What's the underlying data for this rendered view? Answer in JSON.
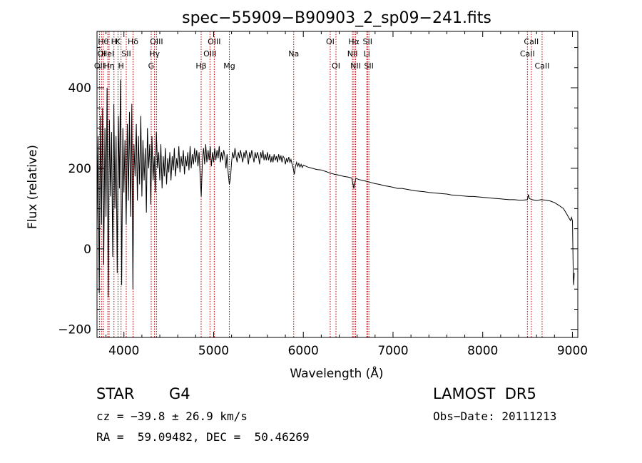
{
  "chart_data": {
    "type": "line",
    "title": "spec−55909−B90903_2_sp09−241.fits",
    "xlabel": "Wavelength (Å)",
    "ylabel": "Flux (relative)",
    "xlim": [
      3700,
      9060
    ],
    "ylim": [
      -220,
      540
    ],
    "xticks": [
      4000,
      5000,
      6000,
      7000,
      8000,
      9000
    ],
    "yticks": [
      -200,
      0,
      200,
      400
    ],
    "grid": false,
    "line_color": "#000000",
    "marker_color": "#c00000",
    "series": [
      {
        "points": [
          [
            3700,
            40
          ],
          [
            3712,
            280
          ],
          [
            3725,
            -110
          ],
          [
            3738,
            330
          ],
          [
            3750,
            60
          ],
          [
            3762,
            350
          ],
          [
            3775,
            -40
          ],
          [
            3788,
            300
          ],
          [
            3800,
            80
          ],
          [
            3812,
            400
          ],
          [
            3825,
            -120
          ],
          [
            3838,
            320
          ],
          [
            3850,
            130
          ],
          [
            3862,
            290
          ],
          [
            3875,
            -20
          ],
          [
            3888,
            360
          ],
          [
            3900,
            100
          ],
          [
            3912,
            280
          ],
          [
            3925,
            -60
          ],
          [
            3938,
            330
          ],
          [
            3950,
            150
          ],
          [
            3962,
            420
          ],
          [
            3975,
            -90
          ],
          [
            3988,
            300
          ],
          [
            4000,
            140
          ],
          [
            4012,
            270
          ],
          [
            4025,
            60
          ],
          [
            4038,
            310
          ],
          [
            4050,
            120
          ],
          [
            4062,
            340
          ],
          [
            4075,
            80
          ],
          [
            4088,
            360
          ],
          [
            4100,
            -100
          ],
          [
            4112,
            260
          ],
          [
            4125,
            180
          ],
          [
            4138,
            310
          ],
          [
            4150,
            120
          ],
          [
            4162,
            280
          ],
          [
            4175,
            160
          ],
          [
            4188,
            330
          ],
          [
            4200,
            130
          ],
          [
            4212,
            270
          ],
          [
            4225,
            170
          ],
          [
            4238,
            250
          ],
          [
            4250,
            90
          ],
          [
            4262,
            300
          ],
          [
            4275,
            200
          ],
          [
            4288,
            260
          ],
          [
            4300,
            110
          ],
          [
            4312,
            280
          ],
          [
            4325,
            170
          ],
          [
            4338,
            230
          ],
          [
            4350,
            140
          ],
          [
            4362,
            290
          ],
          [
            4375,
            200
          ],
          [
            4388,
            240
          ],
          [
            4400,
            170
          ],
          [
            4412,
            260
          ],
          [
            4425,
            150
          ],
          [
            4438,
            230
          ],
          [
            4450,
            180
          ],
          [
            4462,
            250
          ],
          [
            4475,
            160
          ],
          [
            4488,
            225
          ],
          [
            4500,
            190
          ],
          [
            4512,
            240
          ],
          [
            4525,
            170
          ],
          [
            4538,
            230
          ],
          [
            4550,
            195
          ],
          [
            4562,
            250
          ],
          [
            4575,
            180
          ],
          [
            4588,
            225
          ],
          [
            4600,
            200
          ],
          [
            4612,
            255
          ],
          [
            4625,
            190
          ],
          [
            4638,
            230
          ],
          [
            4650,
            205
          ],
          [
            4662,
            245
          ],
          [
            4675,
            185
          ],
          [
            4688,
            230
          ],
          [
            4700,
            205
          ],
          [
            4712,
            240
          ],
          [
            4725,
            195
          ],
          [
            4738,
            255
          ],
          [
            4750,
            200
          ],
          [
            4762,
            235
          ],
          [
            4775,
            210
          ],
          [
            4788,
            250
          ],
          [
            4800,
            215
          ],
          [
            4812,
            245
          ],
          [
            4825,
            205
          ],
          [
            4838,
            240
          ],
          [
            4850,
            180
          ],
          [
            4862,
            130
          ],
          [
            4875,
            220
          ],
          [
            4888,
            250
          ],
          [
            4900,
            210
          ],
          [
            4912,
            260
          ],
          [
            4925,
            215
          ],
          [
            4938,
            245
          ],
          [
            4950,
            220
          ],
          [
            4962,
            255
          ],
          [
            4975,
            205
          ],
          [
            4988,
            240
          ],
          [
            5000,
            215
          ],
          [
            5012,
            250
          ],
          [
            5025,
            220
          ],
          [
            5038,
            245
          ],
          [
            5050,
            225
          ],
          [
            5062,
            255
          ],
          [
            5075,
            215
          ],
          [
            5088,
            240
          ],
          [
            5100,
            220
          ],
          [
            5112,
            245
          ],
          [
            5125,
            230
          ],
          [
            5138,
            200
          ],
          [
            5150,
            235
          ],
          [
            5162,
            190
          ],
          [
            5175,
            160
          ],
          [
            5188,
            175
          ],
          [
            5200,
            215
          ],
          [
            5212,
            240
          ],
          [
            5225,
            225
          ],
          [
            5238,
            250
          ],
          [
            5250,
            230
          ],
          [
            5262,
            215
          ],
          [
            5275,
            240
          ],
          [
            5288,
            225
          ],
          [
            5300,
            245
          ],
          [
            5312,
            230
          ],
          [
            5325,
            215
          ],
          [
            5338,
            240
          ],
          [
            5350,
            225
          ],
          [
            5362,
            245
          ],
          [
            5375,
            230
          ],
          [
            5388,
            210
          ],
          [
            5400,
            240
          ],
          [
            5412,
            225
          ],
          [
            5425,
            245
          ],
          [
            5438,
            230
          ],
          [
            5450,
            215
          ],
          [
            5462,
            240
          ],
          [
            5475,
            225
          ],
          [
            5488,
            240
          ],
          [
            5500,
            230
          ],
          [
            5512,
            210
          ],
          [
            5525,
            240
          ],
          [
            5538,
            225
          ],
          [
            5550,
            245
          ],
          [
            5562,
            220
          ],
          [
            5575,
            235
          ],
          [
            5588,
            220
          ],
          [
            5600,
            240
          ],
          [
            5612,
            220
          ],
          [
            5625,
            235
          ],
          [
            5638,
            215
          ],
          [
            5650,
            230
          ],
          [
            5662,
            215
          ],
          [
            5675,
            235
          ],
          [
            5688,
            220
          ],
          [
            5700,
            230
          ],
          [
            5712,
            215
          ],
          [
            5725,
            235
          ],
          [
            5738,
            220
          ],
          [
            5750,
            232
          ],
          [
            5762,
            215
          ],
          [
            5775,
            230
          ],
          [
            5788,
            225
          ],
          [
            5800,
            210
          ],
          [
            5812,
            225
          ],
          [
            5825,
            215
          ],
          [
            5838,
            228
          ],
          [
            5850,
            215
          ],
          [
            5862,
            222
          ],
          [
            5875,
            210
          ],
          [
            5888,
            200
          ],
          [
            5900,
            185
          ],
          [
            5912,
            205
          ],
          [
            5925,
            215
          ],
          [
            5938,
            205
          ],
          [
            5950,
            212
          ],
          [
            5962,
            203
          ],
          [
            5975,
            210
          ],
          [
            5988,
            202
          ],
          [
            6000,
            208
          ],
          [
            6050,
            203
          ],
          [
            6100,
            200
          ],
          [
            6150,
            197
          ],
          [
            6200,
            196
          ],
          [
            6250,
            192
          ],
          [
            6300,
            188
          ],
          [
            6350,
            185
          ],
          [
            6400,
            183
          ],
          [
            6450,
            180
          ],
          [
            6500,
            178
          ],
          [
            6540,
            176
          ],
          [
            6563,
            150
          ],
          [
            6585,
            175
          ],
          [
            6620,
            172
          ],
          [
            6660,
            170
          ],
          [
            6700,
            168
          ],
          [
            6750,
            165
          ],
          [
            6800,
            162
          ],
          [
            6850,
            160
          ],
          [
            6900,
            157
          ],
          [
            6950,
            155
          ],
          [
            7000,
            153
          ],
          [
            7050,
            150
          ],
          [
            7100,
            150
          ],
          [
            7150,
            148
          ],
          [
            7200,
            146
          ],
          [
            7250,
            144
          ],
          [
            7300,
            143
          ],
          [
            7350,
            142
          ],
          [
            7400,
            140
          ],
          [
            7450,
            139
          ],
          [
            7500,
            138
          ],
          [
            7550,
            137
          ],
          [
            7600,
            136
          ],
          [
            7650,
            134
          ],
          [
            7700,
            133
          ],
          [
            7750,
            132
          ],
          [
            7800,
            131
          ],
          [
            7850,
            130
          ],
          [
            7900,
            130
          ],
          [
            7950,
            129
          ],
          [
            8000,
            128
          ],
          [
            8050,
            127
          ],
          [
            8100,
            126
          ],
          [
            8150,
            125
          ],
          [
            8200,
            124
          ],
          [
            8250,
            123
          ],
          [
            8300,
            122
          ],
          [
            8350,
            122
          ],
          [
            8400,
            121
          ],
          [
            8450,
            121
          ],
          [
            8498,
            122
          ],
          [
            8510,
            135
          ],
          [
            8520,
            125
          ],
          [
            8550,
            122
          ],
          [
            8600,
            120
          ],
          [
            8650,
            122
          ],
          [
            8700,
            121
          ],
          [
            8750,
            119
          ],
          [
            8800,
            115
          ],
          [
            8850,
            108
          ],
          [
            8900,
            100
          ],
          [
            8940,
            85
          ],
          [
            8965,
            75
          ],
          [
            8980,
            70
          ],
          [
            8990,
            78
          ],
          [
            9000,
            70
          ],
          [
            9005,
            0
          ],
          [
            9010,
            -70
          ],
          [
            9015,
            -90
          ],
          [
            9020,
            -60
          ]
        ]
      }
    ],
    "line_markers": [
      {
        "x": 3727,
        "label": "OII",
        "row": 2
      },
      {
        "x": 3750,
        "label": "OI",
        "row": 1
      },
      {
        "x": 3770,
        "label": "Hθ",
        "row": 0
      },
      {
        "x": 3820,
        "label": "HeI",
        "row": 1
      },
      {
        "x": 3835,
        "label": "Hη",
        "row": 2
      },
      {
        "x": 3889,
        "label": "H",
        "row": 0
      },
      {
        "x": 3934,
        "label": "K",
        "row": 0
      },
      {
        "x": 3968,
        "label": "H",
        "row": 2
      },
      {
        "x": 4026,
        "label": "SII",
        "row": 1
      },
      {
        "x": 4102,
        "label": "Hδ",
        "row": 0
      },
      {
        "x": 4304,
        "label": "G",
        "row": 2
      },
      {
        "x": 4341,
        "label": "Hγ",
        "row": 1
      },
      {
        "x": 4363,
        "label": "OIII",
        "row": 0
      },
      {
        "x": 4861,
        "label": "Hβ",
        "row": 2
      },
      {
        "x": 4959,
        "label": "OIII",
        "row": 1
      },
      {
        "x": 5007,
        "label": "OIII",
        "row": 0
      },
      {
        "x": 5175,
        "label": "Mg",
        "row": 2
      },
      {
        "x": 5893,
        "label": "Na",
        "row": 1
      },
      {
        "x": 6300,
        "label": "OI",
        "row": 0
      },
      {
        "x": 6364,
        "label": "OI",
        "row": 2
      },
      {
        "x": 6548,
        "label": "NII",
        "row": 1
      },
      {
        "x": 6563,
        "label": "Hα",
        "row": 0
      },
      {
        "x": 6583,
        "label": "NII",
        "row": 2
      },
      {
        "x": 6708,
        "label": "Li",
        "row": 1
      },
      {
        "x": 6716,
        "label": "SII",
        "row": 0
      },
      {
        "x": 6731,
        "label": "SII",
        "row": 2
      },
      {
        "x": 8498,
        "label": "CaII",
        "row": 1
      },
      {
        "x": 8542,
        "label": "CaII",
        "row": 0
      },
      {
        "x": 8662,
        "label": "CaII",
        "row": 2
      }
    ]
  },
  "info": {
    "object_class": "STAR",
    "subclass": "G4",
    "survey": "LAMOST  DR5",
    "cz": "cz = −39.8 ± 26.9 km/s",
    "obs_date": "Obs−Date: 20111213",
    "coords": "RA =  59.09482, DEC =  50.46269"
  }
}
